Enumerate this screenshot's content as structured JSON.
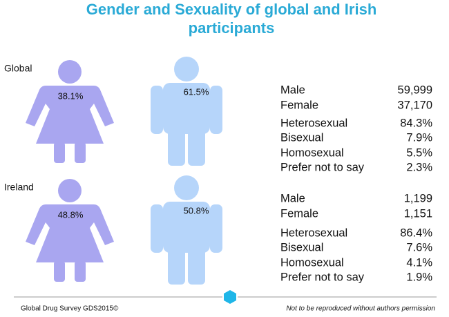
{
  "title": "Gender and Sexuality of global and Irish participants",
  "sections": [
    {
      "label": "Global",
      "female_icon": "38.1%",
      "male_icon": "61.5%",
      "stats": [
        [
          "Male",
          "59,999"
        ],
        [
          "Female",
          "37,170"
        ],
        [
          "Heterosexual",
          "84.3%"
        ],
        [
          "Bisexual",
          "7.9%"
        ],
        [
          "Homosexual",
          "5.5%"
        ],
        [
          "Prefer not to say",
          "2.3%"
        ]
      ]
    },
    {
      "label": "Ireland",
      "female_icon": "48.8%",
      "male_icon": "50.8%",
      "stats": [
        [
          "Male",
          "1,199"
        ],
        [
          "Female",
          "1,151"
        ],
        [
          "Heterosexual",
          "86.4%"
        ],
        [
          "Bisexual",
          "7.6%"
        ],
        [
          "Homosexual",
          "4.1%"
        ],
        [
          "Prefer not to say",
          "1.9%"
        ]
      ]
    }
  ],
  "footer": {
    "left": "Global Drug Survey GDS2015©",
    "right": "Not to be reproduced without authors permission"
  }
}
